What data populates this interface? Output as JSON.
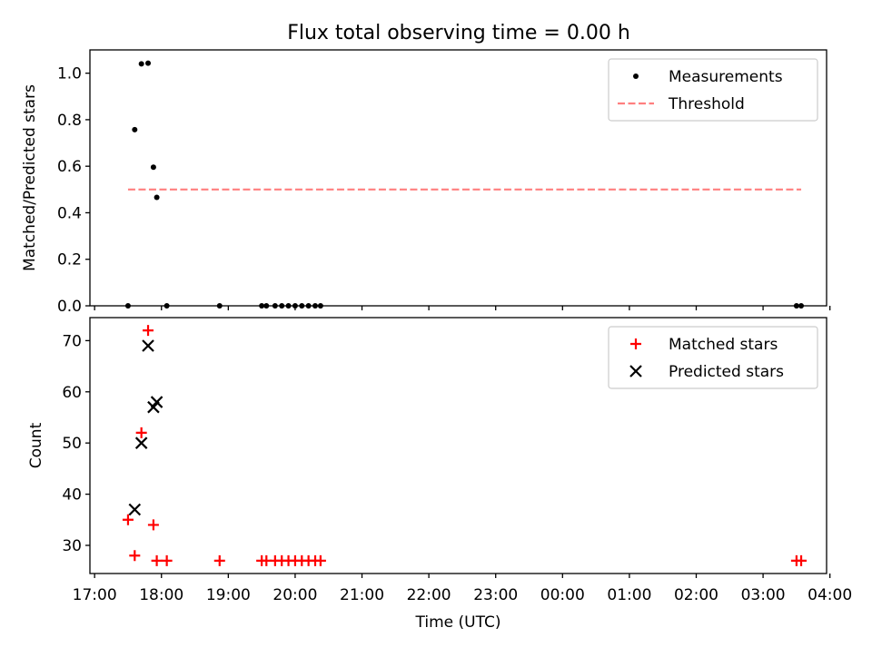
{
  "title": "Flux total observing time = 0.00 h",
  "chart_data": [
    {
      "type": "scatter",
      "ylabel": "Matched/Predicted stars",
      "xlabel": "",
      "ylim": [
        0,
        1.1
      ],
      "xlim_hours": [
        16.93,
        27.95
      ],
      "yticks": [
        0.0,
        0.2,
        0.4,
        0.6,
        0.8,
        1.0
      ],
      "ytick_labels": [
        "0.0",
        "0.2",
        "0.4",
        "0.6",
        "0.8",
        "1.0"
      ],
      "legend": {
        "position": "top-right",
        "entries": [
          "Measurements",
          "Threshold"
        ]
      },
      "series": [
        {
          "name": "Measurements",
          "marker": "dot",
          "color": "#000000",
          "points": [
            [
              17.5,
              0.0
            ],
            [
              17.6,
              0.757
            ],
            [
              17.7,
              1.04
            ],
            [
              17.8,
              1.043
            ],
            [
              17.88,
              0.596
            ],
            [
              17.93,
              0.466
            ],
            [
              18.08,
              0.0
            ],
            [
              18.87,
              0.0
            ],
            [
              19.5,
              0.0
            ],
            [
              19.57,
              0.0
            ],
            [
              19.7,
              0.0
            ],
            [
              19.8,
              0.0
            ],
            [
              19.9,
              0.0
            ],
            [
              20.0,
              0.0
            ],
            [
              20.1,
              0.0
            ],
            [
              20.2,
              0.0
            ],
            [
              20.3,
              0.0
            ],
            [
              20.38,
              0.0
            ],
            [
              27.5,
              0.0
            ],
            [
              27.57,
              0.0
            ]
          ]
        },
        {
          "name": "Threshold",
          "style": "dashed",
          "color": "#ff7f7f",
          "points": [
            [
              17.5,
              0.5
            ],
            [
              27.57,
              0.5
            ]
          ]
        }
      ]
    },
    {
      "type": "scatter",
      "ylabel": "Count",
      "xlabel": "Time (UTC)",
      "ylim": [
        24.5,
        74.5
      ],
      "xlim_hours": [
        16.93,
        27.95
      ],
      "yticks": [
        30,
        40,
        50,
        60,
        70
      ],
      "ytick_labels": [
        "30",
        "40",
        "50",
        "60",
        "70"
      ],
      "xticks_hours": [
        17,
        18,
        19,
        20,
        21,
        22,
        23,
        24,
        25,
        26,
        27,
        28
      ],
      "xtick_labels": [
        "17:00",
        "18:00",
        "19:00",
        "20:00",
        "21:00",
        "22:00",
        "23:00",
        "00:00",
        "01:00",
        "02:00",
        "03:00",
        "04:00"
      ],
      "legend": {
        "position": "top-right",
        "entries": [
          "Matched stars",
          "Predicted stars"
        ]
      },
      "series": [
        {
          "name": "Matched stars",
          "marker": "plus",
          "color": "#ff0000",
          "points": [
            [
              17.5,
              35
            ],
            [
              17.6,
              28
            ],
            [
              17.7,
              52
            ],
            [
              17.8,
              72
            ],
            [
              17.88,
              34
            ],
            [
              17.93,
              27
            ],
            [
              18.08,
              27
            ],
            [
              18.87,
              27
            ],
            [
              19.5,
              27
            ],
            [
              19.57,
              27
            ],
            [
              19.7,
              27
            ],
            [
              19.8,
              27
            ],
            [
              19.9,
              27
            ],
            [
              20.0,
              27
            ],
            [
              20.1,
              27
            ],
            [
              20.2,
              27
            ],
            [
              20.3,
              27
            ],
            [
              20.38,
              27
            ],
            [
              27.5,
              27
            ],
            [
              27.57,
              27
            ]
          ]
        },
        {
          "name": "Predicted stars",
          "marker": "x",
          "color": "#000000",
          "points": [
            [
              17.6,
              37
            ],
            [
              17.7,
              50
            ],
            [
              17.8,
              69
            ],
            [
              17.88,
              57
            ],
            [
              17.93,
              58
            ]
          ]
        }
      ]
    }
  ]
}
